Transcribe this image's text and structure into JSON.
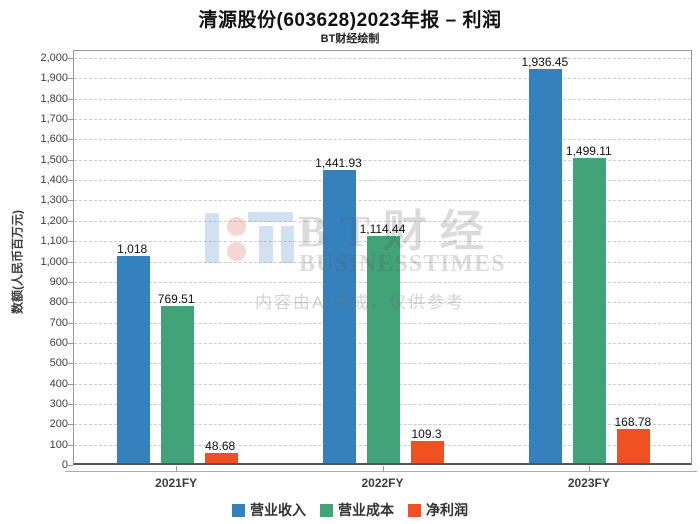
{
  "chart_data": {
    "type": "bar",
    "title": "清源股份(603628)2023年报 – 利润",
    "subtitle": "BT财经绘制",
    "ylabel": "数额(人民币百万元)",
    "xlabel": "",
    "categories": [
      "2021FY",
      "2022FY",
      "2023FY"
    ],
    "series": [
      {
        "name": "营业收入",
        "color": "#3581BD",
        "values": [
          1018,
          1441.93,
          1936.45
        ],
        "labels": [
          "1,018",
          "1,441.93",
          "1,936.45"
        ]
      },
      {
        "name": "营业成本",
        "color": "#41A377",
        "values": [
          769.51,
          1114.44,
          1499.11
        ],
        "labels": [
          "769.51",
          "1,114.44",
          "1,499.11"
        ]
      },
      {
        "name": "净利润",
        "color": "#F05123",
        "values": [
          48.68,
          109.3,
          168.78
        ],
        "labels": [
          "48.68",
          "109.3",
          "168.78"
        ]
      }
    ],
    "ylim": [
      0,
      2000
    ],
    "ytick_step": 100,
    "grid": true,
    "grid_style": "dashed",
    "legend_position": "bottom"
  },
  "watermark": {
    "brand_text": "BT财经",
    "brand_line2": "BUSINESSTIMES",
    "ai_note": "内容由AI生成，仅供参考"
  }
}
